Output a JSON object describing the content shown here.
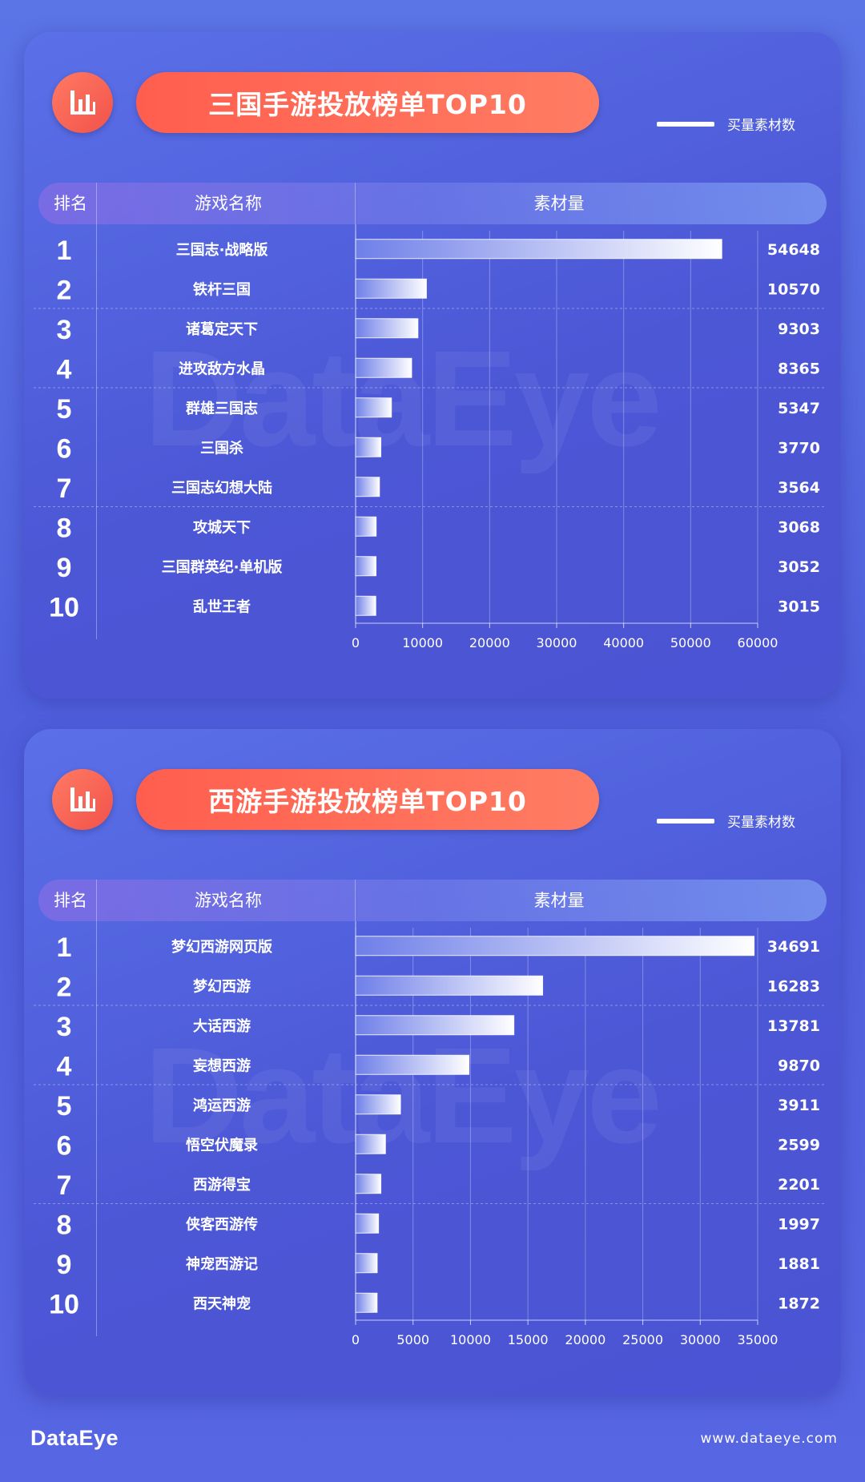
{
  "watermark": "DataEye",
  "footer": {
    "logo": "DataEye",
    "url": "www.dataeye.com"
  },
  "colors": {
    "accent": "#ff6a55",
    "background": "#5160de",
    "bar_start": "#ffffff",
    "bar_end": "#6e7fe8"
  },
  "chart_data": [
    {
      "type": "bar",
      "orientation": "horizontal",
      "title": "三国手游投放榜单TOP10",
      "legend": "买量素材数",
      "legend_position": "top-right",
      "columns": {
        "rank": "排名",
        "name": "游戏名称",
        "value": "素材量"
      },
      "ranks": [
        "1",
        "2",
        "3",
        "4",
        "5",
        "6",
        "7",
        "8",
        "9",
        "10"
      ],
      "categories": [
        "三国志·战略版",
        "铁杆三国",
        "诸葛定天下",
        "进攻敌方水晶",
        "群雄三国志",
        "三国杀",
        "三国志幻想大陆",
        "攻城天下",
        "三国群英纪·单机版",
        "乱世王者"
      ],
      "values": [
        54648,
        10570,
        9303,
        8365,
        5347,
        3770,
        3564,
        3068,
        3052,
        3015
      ],
      "xlim": [
        0,
        60000
      ],
      "xticks": [
        0,
        10000,
        20000,
        30000,
        40000,
        50000,
        60000
      ]
    },
    {
      "type": "bar",
      "orientation": "horizontal",
      "title": "西游手游投放榜单TOP10",
      "legend": "买量素材数",
      "legend_position": "top-right",
      "columns": {
        "rank": "排名",
        "name": "游戏名称",
        "value": "素材量"
      },
      "ranks": [
        "1",
        "2",
        "3",
        "4",
        "5",
        "6",
        "7",
        "8",
        "9",
        "10"
      ],
      "categories": [
        "梦幻西游网页版",
        "梦幻西游",
        "大话西游",
        "妄想西游",
        "鸿运西游",
        "悟空伏魔录",
        "西游得宝",
        "侠客西游传",
        "神宠西游记",
        "西天神宠"
      ],
      "values": [
        34691,
        16283,
        13781,
        9870,
        3911,
        2599,
        2201,
        1997,
        1881,
        1872
      ],
      "xlim": [
        0,
        35000
      ],
      "xticks": [
        0,
        5000,
        10000,
        15000,
        20000,
        25000,
        30000,
        35000
      ]
    }
  ]
}
